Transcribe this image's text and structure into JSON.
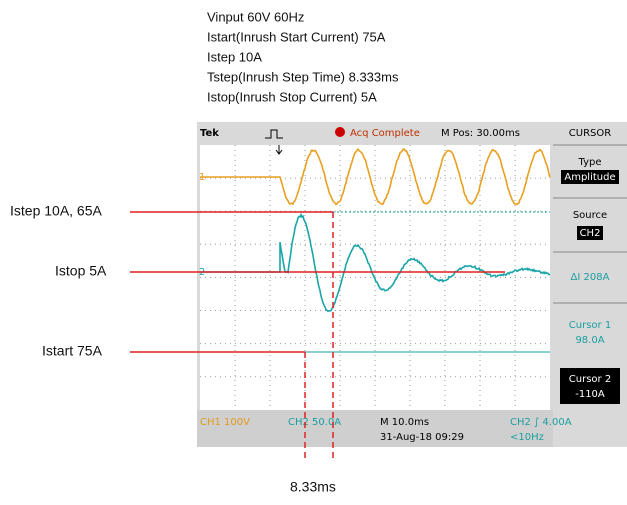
{
  "notes": [
    "Vinput 60V 60Hz",
    "Istart(Inrush Start Current) 75A",
    "Istep 10A",
    "Tstep(Inrush Step Time) 8.333ms",
    "Istop(Inrush Stop Current) 5A"
  ],
  "annotations": {
    "istep": "Istep 10A, 65A",
    "istop": "Istop 5A",
    "istart": "Istart 75A",
    "time": "8.33ms"
  },
  "scope": {
    "brand": "Tek",
    "status": "Acq Complete",
    "position": "M Pos: 30.00ms",
    "menu_title": "CURSOR",
    "type_label": "Type",
    "type_value": "Amplitude",
    "source_label": "Source",
    "source_value": "CH2",
    "delta": "ΔI 208A",
    "cursor1_label": "Cursor 1",
    "cursor1_value": "98.0A",
    "cursor2_label": "Cursor 2",
    "cursor2_value": "-110A",
    "ch1_marker": "1",
    "ch2_marker": "2"
  },
  "footer": {
    "ch1": "CH1  100V",
    "ch2": "CH2  50.0A",
    "timebase": "M 10.0ms",
    "date": "31-Aug-18 09:29",
    "trigger": "CH2 ∫ 4.00A",
    "freq": "<10Hz"
  }
}
